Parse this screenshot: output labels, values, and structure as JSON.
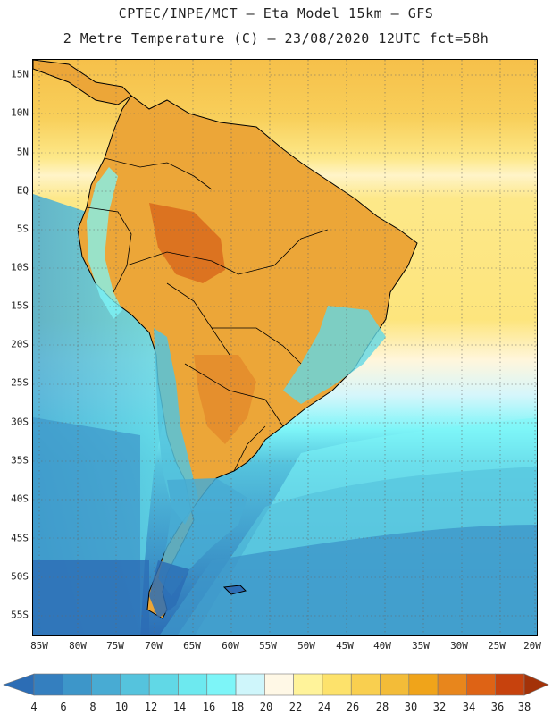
{
  "title": {
    "line1": "CPTEC/INPE/MCT –  Eta Model 15km – GFS",
    "line2": "2 Metre Temperature (C) – 23/08/2020 12UTC fct=58h"
  },
  "map": {
    "lat_labels": [
      "15N",
      "10N",
      "5N",
      "EQ",
      "5S",
      "10S",
      "15S",
      "20S",
      "25S",
      "30S",
      "35S",
      "40S",
      "45S",
      "50S",
      "55S"
    ],
    "lon_labels": [
      "85W",
      "80W",
      "75W",
      "70W",
      "65W",
      "60W",
      "55W",
      "50W",
      "45W",
      "40W",
      "35W",
      "30W",
      "25W",
      "20W"
    ]
  },
  "colorbar": {
    "ticks": [
      "4",
      "6",
      "8",
      "10",
      "12",
      "14",
      "16",
      "18",
      "20",
      "22",
      "24",
      "26",
      "28",
      "30",
      "32",
      "34",
      "36",
      "38"
    ],
    "colors": [
      "#2c6db5",
      "#347fbf",
      "#3d96c9",
      "#48abd3",
      "#55c3dd",
      "#61d8e6",
      "#6de9ef",
      "#7df5f8",
      "#cff6fb",
      "#fff8e6",
      "#fff39a",
      "#fde26b",
      "#f9cf4f",
      "#f3bc38",
      "#f0a41a",
      "#e8861c",
      "#de6315",
      "#c7420d",
      "#a33208"
    ]
  }
}
